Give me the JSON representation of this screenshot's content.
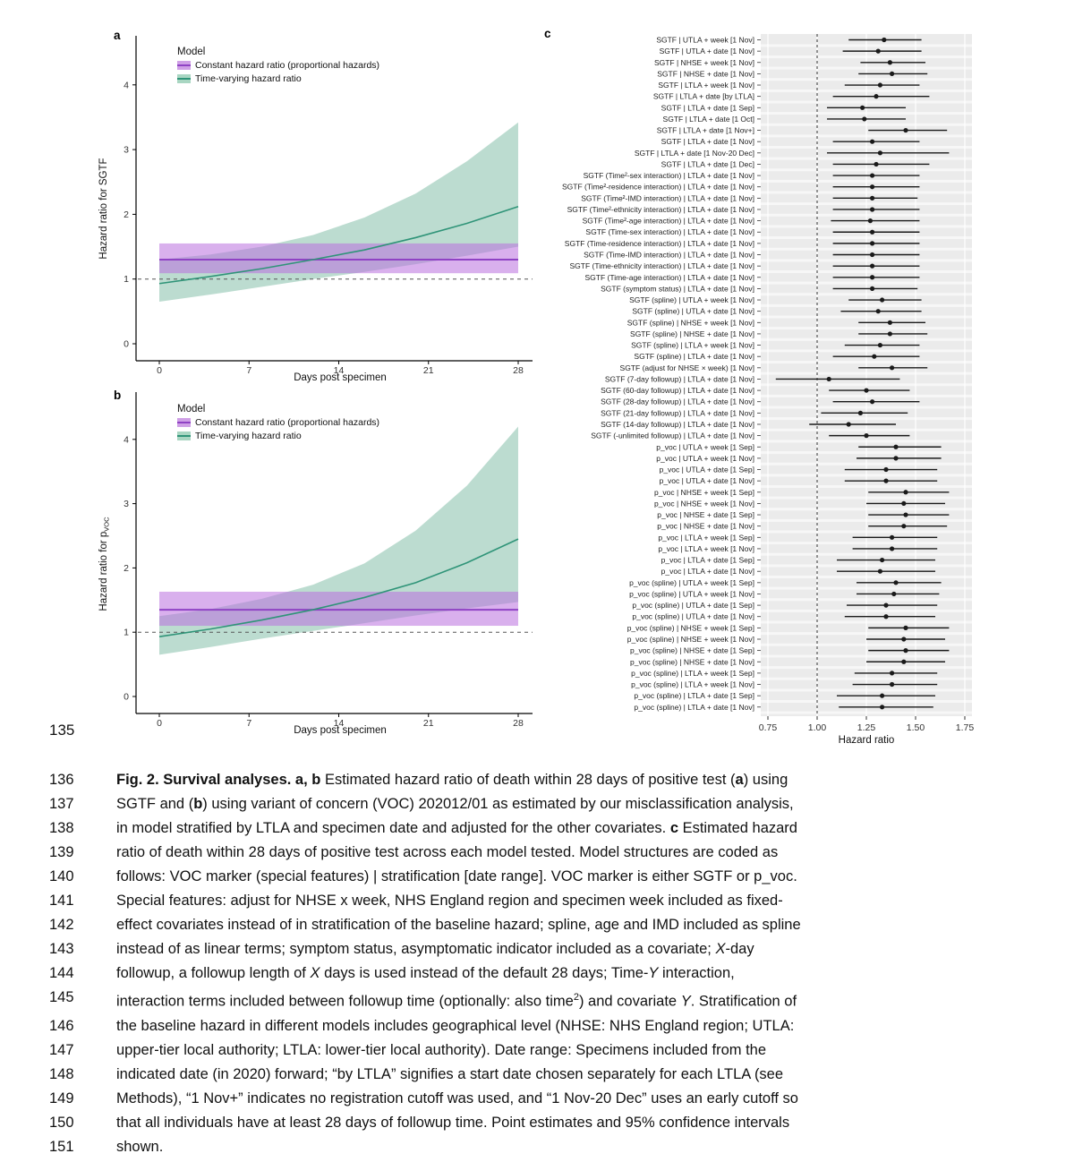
{
  "margin_line_number": "135",
  "colors": {
    "purple_line": "#8f42c4",
    "purple_fill": "rgba(186,112,222,0.55)",
    "purple_key": "#cf9fe6",
    "green_line": "#2f9478",
    "green_fill": "rgba(64,155,120,0.35)",
    "green_key": "#a9d6c2",
    "point": "#1a1a1a",
    "panel_bg": "#ebebeb",
    "axis_text": "#333333"
  },
  "chart_data": [
    {
      "id": "panel_a",
      "type": "line",
      "panel_letter": "a",
      "xlabel": "Days post specimen",
      "ylabel": "Hazard ratio for SGTF",
      "ylabel_sub": "",
      "xticks": [
        0,
        7,
        14,
        21,
        28
      ],
      "yticks": [
        0,
        1,
        2,
        3,
        4
      ],
      "ylim": [
        -0.3,
        4.7
      ],
      "xlim": [
        0,
        28
      ],
      "reference_line_y": 1,
      "grid": false,
      "legend": {
        "title": "Model",
        "position": "top-left",
        "items": [
          {
            "label": "Constant hazard ratio (proportional hazards)",
            "color_key": "purple"
          },
          {
            "label": "Time-varying hazard ratio",
            "color_key": "green"
          }
        ]
      },
      "series": [
        {
          "name": "Constant hazard ratio (proportional hazards)",
          "style": "constant",
          "est": 1.3,
          "lo": 1.09,
          "hi": 1.55
        },
        {
          "name": "Time-varying hazard ratio",
          "style": "curve",
          "x": [
            0,
            4,
            8,
            12,
            16,
            20,
            24,
            28
          ],
          "est": [
            0.93,
            1.04,
            1.16,
            1.3,
            1.45,
            1.64,
            1.86,
            2.12
          ],
          "lo": [
            0.65,
            0.76,
            0.88,
            1.0,
            1.11,
            1.23,
            1.36,
            1.5
          ],
          "hi": [
            1.3,
            1.38,
            1.5,
            1.68,
            1.95,
            2.32,
            2.82,
            3.42
          ]
        }
      ]
    },
    {
      "id": "panel_b",
      "type": "line",
      "panel_letter": "b",
      "xlabel": "Days post specimen",
      "ylabel": "Hazard ratio for p",
      "ylabel_sub": "VOC",
      "xticks": [
        0,
        7,
        14,
        21,
        28
      ],
      "yticks": [
        0,
        1,
        2,
        3,
        4
      ],
      "ylim": [
        -0.3,
        4.7
      ],
      "xlim": [
        0,
        28
      ],
      "reference_line_y": 1,
      "grid": false,
      "legend": {
        "title": "Model",
        "position": "top-left",
        "items": [
          {
            "label": "Constant hazard ratio (proportional hazards)",
            "color_key": "purple"
          },
          {
            "label": "Time-varying hazard ratio",
            "color_key": "green"
          }
        ]
      },
      "series": [
        {
          "name": "Constant hazard ratio (proportional hazards)",
          "style": "constant",
          "est": 1.35,
          "lo": 1.1,
          "hi": 1.63
        },
        {
          "name": "Time-varying hazard ratio",
          "style": "curve",
          "x": [
            0,
            4,
            8,
            12,
            16,
            20,
            24,
            28
          ],
          "est": [
            0.93,
            1.05,
            1.19,
            1.35,
            1.54,
            1.77,
            2.08,
            2.45
          ],
          "lo": [
            0.65,
            0.77,
            0.9,
            1.02,
            1.14,
            1.26,
            1.37,
            1.47
          ],
          "hi": [
            1.25,
            1.36,
            1.52,
            1.74,
            2.07,
            2.58,
            3.28,
            4.2
          ]
        }
      ]
    },
    {
      "id": "panel_c",
      "type": "forest",
      "panel_letter": "c",
      "xlabel": "Hazard ratio",
      "xticks": [
        0.75,
        1.0,
        1.25,
        1.5,
        1.75
      ],
      "xlim": [
        0.73,
        1.78
      ],
      "reference_line_x": 1.0,
      "grid": true,
      "rows": [
        {
          "label": "SGTF | UTLA + week [1 Nov]",
          "est": 1.34,
          "lo": 1.16,
          "hi": 1.53
        },
        {
          "label": "SGTF | UTLA + date [1 Nov]",
          "est": 1.31,
          "lo": 1.13,
          "hi": 1.53
        },
        {
          "label": "SGTF | NHSE + week [1 Nov]",
          "est": 1.37,
          "lo": 1.22,
          "hi": 1.55
        },
        {
          "label": "SGTF | NHSE + date [1 Nov]",
          "est": 1.38,
          "lo": 1.21,
          "hi": 1.56
        },
        {
          "label": "SGTF | LTLA + week [1 Nov]",
          "est": 1.32,
          "lo": 1.14,
          "hi": 1.52
        },
        {
          "label": "SGTF | LTLA + date [by LTLA]",
          "est": 1.3,
          "lo": 1.08,
          "hi": 1.57
        },
        {
          "label": "SGTF | LTLA + date [1 Sep]",
          "est": 1.23,
          "lo": 1.05,
          "hi": 1.45
        },
        {
          "label": "SGTF | LTLA + date [1 Oct]",
          "est": 1.24,
          "lo": 1.05,
          "hi": 1.45
        },
        {
          "label": "SGTF | LTLA + date [1 Nov+]",
          "est": 1.45,
          "lo": 1.26,
          "hi": 1.66
        },
        {
          "label": "SGTF | LTLA + date [1 Nov]",
          "est": 1.28,
          "lo": 1.08,
          "hi": 1.52
        },
        {
          "label": "SGTF | LTLA + date [1 Nov-20 Dec]",
          "est": 1.32,
          "lo": 1.05,
          "hi": 1.67
        },
        {
          "label": "SGTF | LTLA + date [1 Dec]",
          "est": 1.3,
          "lo": 1.08,
          "hi": 1.57
        },
        {
          "label": "SGTF (Time²-sex interaction) | LTLA + date [1 Nov]",
          "est": 1.28,
          "lo": 1.08,
          "hi": 1.52
        },
        {
          "label": "SGTF (Time²-residence interaction) | LTLA + date [1 Nov]",
          "est": 1.28,
          "lo": 1.08,
          "hi": 1.52
        },
        {
          "label": "SGTF (Time²-IMD interaction) | LTLA + date [1 Nov]",
          "est": 1.28,
          "lo": 1.08,
          "hi": 1.51
        },
        {
          "label": "SGTF (Time²-ethnicity interaction) | LTLA + date [1 Nov]",
          "est": 1.28,
          "lo": 1.08,
          "hi": 1.52
        },
        {
          "label": "SGTF (Time²-age interaction) | LTLA + date [1 Nov]",
          "est": 1.27,
          "lo": 1.07,
          "hi": 1.52
        },
        {
          "label": "SGTF (Time-sex interaction) | LTLA + date [1 Nov]",
          "est": 1.28,
          "lo": 1.08,
          "hi": 1.52
        },
        {
          "label": "SGTF (Time-residence interaction) | LTLA + date [1 Nov]",
          "est": 1.28,
          "lo": 1.08,
          "hi": 1.52
        },
        {
          "label": "SGTF (Time-IMD interaction) | LTLA + date [1 Nov]",
          "est": 1.28,
          "lo": 1.08,
          "hi": 1.52
        },
        {
          "label": "SGTF (Time-ethnicity interaction) | LTLA + date [1 Nov]",
          "est": 1.28,
          "lo": 1.08,
          "hi": 1.52
        },
        {
          "label": "SGTF (Time-age interaction) | LTLA + date [1 Nov]",
          "est": 1.28,
          "lo": 1.08,
          "hi": 1.52
        },
        {
          "label": "SGTF (symptom status) | LTLA + date [1 Nov]",
          "est": 1.28,
          "lo": 1.08,
          "hi": 1.51
        },
        {
          "label": "SGTF (spline) | UTLA + week [1 Nov]",
          "est": 1.33,
          "lo": 1.16,
          "hi": 1.53
        },
        {
          "label": "SGTF (spline) | UTLA + date [1 Nov]",
          "est": 1.31,
          "lo": 1.12,
          "hi": 1.53
        },
        {
          "label": "SGTF (spline) | NHSE + week [1 Nov]",
          "est": 1.37,
          "lo": 1.21,
          "hi": 1.55
        },
        {
          "label": "SGTF (spline) | NHSE + date [1 Nov]",
          "est": 1.37,
          "lo": 1.21,
          "hi": 1.56
        },
        {
          "label": "SGTF (spline) | LTLA + week [1 Nov]",
          "est": 1.32,
          "lo": 1.14,
          "hi": 1.52
        },
        {
          "label": "SGTF (spline) | LTLA + date [1 Nov]",
          "est": 1.29,
          "lo": 1.08,
          "hi": 1.52
        },
        {
          "label": "SGTF (adjust for NHSE × week) [1 Nov]",
          "est": 1.38,
          "lo": 1.21,
          "hi": 1.56
        },
        {
          "label": "SGTF (7-day followup) | LTLA + date [1 Nov]",
          "est": 1.06,
          "lo": 0.79,
          "hi": 1.42
        },
        {
          "label": "SGTF (60-day followup) | LTLA + date [1 Nov]",
          "est": 1.25,
          "lo": 1.06,
          "hi": 1.47
        },
        {
          "label": "SGTF (28-day followup) | LTLA + date [1 Nov]",
          "est": 1.28,
          "lo": 1.08,
          "hi": 1.52
        },
        {
          "label": "SGTF (21-day followup) | LTLA + date [1 Nov]",
          "est": 1.22,
          "lo": 1.02,
          "hi": 1.46
        },
        {
          "label": "SGTF (14-day followup) | LTLA + date [1 Nov]",
          "est": 1.16,
          "lo": 0.96,
          "hi": 1.4
        },
        {
          "label": "SGTF (-unlimited followup) | LTLA + date [1 Nov]",
          "est": 1.25,
          "lo": 1.06,
          "hi": 1.47
        },
        {
          "label": "p_voc | UTLA + week [1 Sep]",
          "est": 1.4,
          "lo": 1.21,
          "hi": 1.63
        },
        {
          "label": "p_voc | UTLA + week [1 Nov]",
          "est": 1.4,
          "lo": 1.2,
          "hi": 1.63
        },
        {
          "label": "p_voc | UTLA + date [1 Sep]",
          "est": 1.35,
          "lo": 1.14,
          "hi": 1.61
        },
        {
          "label": "p_voc | UTLA + date [1 Nov]",
          "est": 1.35,
          "lo": 1.14,
          "hi": 1.61
        },
        {
          "label": "p_voc | NHSE + week [1 Sep]",
          "est": 1.45,
          "lo": 1.26,
          "hi": 1.67
        },
        {
          "label": "p_voc | NHSE + week [1 Nov]",
          "est": 1.44,
          "lo": 1.25,
          "hi": 1.65
        },
        {
          "label": "p_voc | NHSE + date [1 Sep]",
          "est": 1.45,
          "lo": 1.26,
          "hi": 1.67
        },
        {
          "label": "p_voc | NHSE + date [1 Nov]",
          "est": 1.44,
          "lo": 1.26,
          "hi": 1.66
        },
        {
          "label": "p_voc | LTLA + week [1 Sep]",
          "est": 1.38,
          "lo": 1.18,
          "hi": 1.61
        },
        {
          "label": "p_voc | LTLA + week [1 Nov]",
          "est": 1.38,
          "lo": 1.18,
          "hi": 1.61
        },
        {
          "label": "p_voc | LTLA + date [1 Sep]",
          "est": 1.33,
          "lo": 1.1,
          "hi": 1.6
        },
        {
          "label": "p_voc | LTLA + date [1 Nov]",
          "est": 1.32,
          "lo": 1.1,
          "hi": 1.6
        },
        {
          "label": "p_voc (spline) | UTLA + week [1 Sep]",
          "est": 1.4,
          "lo": 1.2,
          "hi": 1.63
        },
        {
          "label": "p_voc (spline) | UTLA + week [1 Nov]",
          "est": 1.39,
          "lo": 1.2,
          "hi": 1.62
        },
        {
          "label": "p_voc (spline) | UTLA + date [1 Sep]",
          "est": 1.35,
          "lo": 1.15,
          "hi": 1.61
        },
        {
          "label": "p_voc (spline) | UTLA + date [1 Nov]",
          "est": 1.35,
          "lo": 1.14,
          "hi": 1.6
        },
        {
          "label": "p_voc (spline) | NHSE + week [1 Sep]",
          "est": 1.45,
          "lo": 1.26,
          "hi": 1.67
        },
        {
          "label": "p_voc (spline) | NHSE + week [1 Nov]",
          "est": 1.44,
          "lo": 1.25,
          "hi": 1.65
        },
        {
          "label": "p_voc (spline) | NHSE + date [1 Sep]",
          "est": 1.45,
          "lo": 1.26,
          "hi": 1.67
        },
        {
          "label": "p_voc (spline) | NHSE + date [1 Nov]",
          "est": 1.44,
          "lo": 1.25,
          "hi": 1.65
        },
        {
          "label": "p_voc (spline) | LTLA + week [1 Sep]",
          "est": 1.38,
          "lo": 1.19,
          "hi": 1.61
        },
        {
          "label": "p_voc (spline) | LTLA + week [1 Nov]",
          "est": 1.38,
          "lo": 1.18,
          "hi": 1.61
        },
        {
          "label": "p_voc (spline) | LTLA + date [1 Sep]",
          "est": 1.33,
          "lo": 1.1,
          "hi": 1.6
        },
        {
          "label": "p_voc (spline) | LTLA + date [1 Nov]",
          "est": 1.33,
          "lo": 1.11,
          "hi": 1.59
        }
      ]
    }
  ],
  "caption": {
    "line_numbers": [
      "136",
      "137",
      "138",
      "139",
      "140",
      "141",
      "142",
      "143",
      "144",
      "145",
      "146",
      "147",
      "148",
      "149",
      "150",
      "151"
    ],
    "lines": [
      [
        {
          "b": "Fig. 2. Survival analyses. a, b"
        },
        {
          "t": " Estimated hazard ratio of death within 28 days of positive test ("
        },
        {
          "b": "a"
        },
        {
          "t": ") using"
        }
      ],
      [
        {
          "t": "SGTF and ("
        },
        {
          "b": "b"
        },
        {
          "t": ") using variant of concern (VOC) 202012/01 as estimated by our misclassification analysis,"
        }
      ],
      [
        {
          "t": "in model stratified by LTLA and specimen date and adjusted for the other covariates. "
        },
        {
          "b": "c"
        },
        {
          "t": " Estimated hazard"
        }
      ],
      [
        {
          "t": "ratio of death within 28 days of positive test across each model tested. Model structures are coded as"
        }
      ],
      [
        {
          "t": "follows: VOC marker (special features) | stratification [date range]. VOC marker is either SGTF or p_voc."
        }
      ],
      [
        {
          "t": "Special features: adjust for NHSE x week, NHS England region and specimen week included as fixed-"
        }
      ],
      [
        {
          "t": "effect covariates instead of in stratification of the baseline hazard; spline, age and IMD included as spline"
        }
      ],
      [
        {
          "t": "instead of as linear terms; symptom status, asymptomatic indicator included as a covariate; "
        },
        {
          "i": "X"
        },
        {
          "t": "-day"
        }
      ],
      [
        {
          "t": "followup, a followup length of "
        },
        {
          "i": "X"
        },
        {
          "t": " days is used instead of the default 28 days; Time-"
        },
        {
          "i": "Y"
        },
        {
          "t": " interaction,"
        }
      ],
      [
        {
          "t": "interaction terms included between followup time (optionally: also time"
        },
        {
          "sup": "2"
        },
        {
          "t": ") and covariate "
        },
        {
          "i": "Y"
        },
        {
          "t": ". Stratification of"
        }
      ],
      [
        {
          "t": "the baseline hazard in different models includes geographical level (NHSE: NHS England region; UTLA:"
        }
      ],
      [
        {
          "t": "upper-tier local authority; LTLA: lower-tier local authority). Date range: Specimens included from the"
        }
      ],
      [
        {
          "t": "indicated date (in 2020) forward; “by LTLA” signifies a start date chosen separately for each LTLA (see"
        }
      ],
      [
        {
          "t": "Methods), “1 Nov+” indicates no registration cutoff was used, and “1 Nov-20 Dec” uses an early cutoff so"
        }
      ],
      [
        {
          "t": "that all individuals have at least 28 days of followup time. Point estimates and 95% confidence intervals"
        }
      ],
      [
        {
          "t": "shown."
        }
      ]
    ]
  }
}
